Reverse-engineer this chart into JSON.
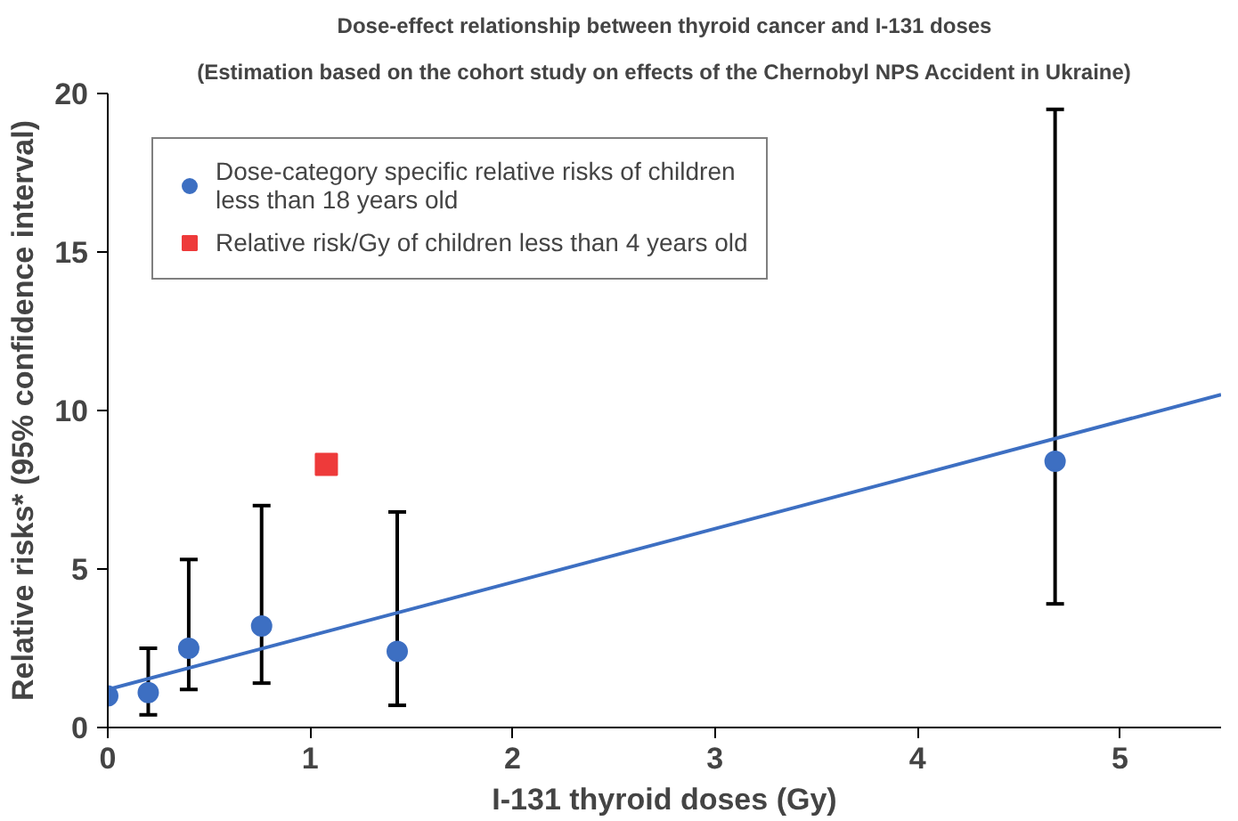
{
  "chart_data": {
    "type": "scatter",
    "title": "Dose-effect relationship between thyroid cancer and I-131 doses",
    "subtitle": "(Estimation based on the cohort study on effects of the Chernobyl NPS Accident in Ukraine)",
    "xlabel": "I-131 thyroid doses (Gy)",
    "ylabel": "Relative risks* (95% confidence interval)",
    "xlim": [
      0,
      5.5
    ],
    "ylim": [
      0,
      20
    ],
    "xticks": [
      0,
      1,
      2,
      3,
      4,
      5
    ],
    "yticks": [
      0,
      5,
      10,
      15,
      20
    ],
    "grid": false,
    "legend": "top left",
    "series": [
      {
        "name": "Dose-category specific relative risks of children less than 18 years old",
        "marker": "circle",
        "color": "#3d6fc2",
        "x": [
          0,
          0.2,
          0.4,
          0.76,
          1.43,
          4.68
        ],
        "values": [
          1.0,
          1.1,
          2.5,
          3.2,
          2.4,
          8.4
        ],
        "errors": [
          null,
          [
            0.4,
            2.5
          ],
          [
            1.2,
            5.3
          ],
          [
            1.4,
            7.0
          ],
          [
            0.7,
            6.8
          ],
          [
            3.9,
            19.5
          ]
        ]
      },
      {
        "name": "Relative risk/Gy of children less than 4 years old",
        "marker": "square",
        "color": "#ee3a3a",
        "x": [
          1.08
        ],
        "values": [
          8.3
        ]
      },
      {
        "type": "line",
        "color": "#3d6fc2",
        "x": [
          0,
          5.5
        ],
        "values": [
          1.2,
          10.5
        ]
      }
    ]
  }
}
